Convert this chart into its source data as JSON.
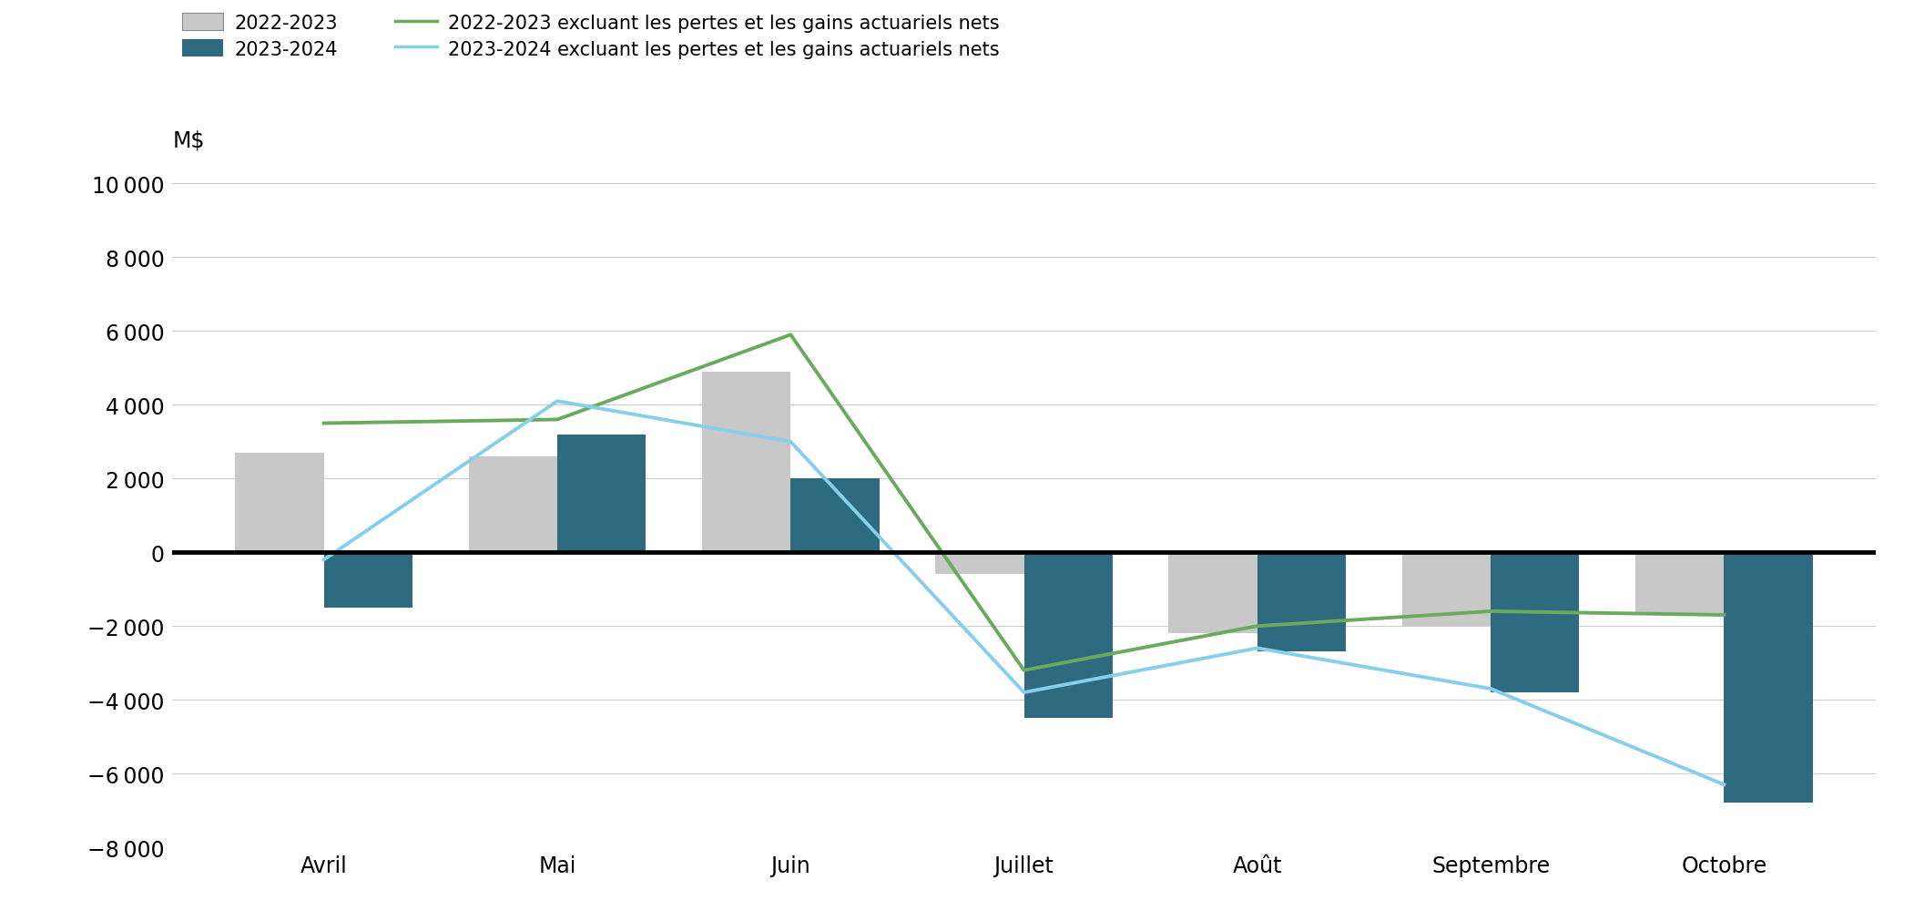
{
  "months": [
    "Avril",
    "Mai",
    "Juin",
    "Juillet",
    "Août",
    "Septembre",
    "Octobre"
  ],
  "bars_2022_2023": [
    2700,
    2600,
    4900,
    -600,
    -2200,
    -2000,
    -1700
  ],
  "bars_2023_2024": [
    -1500,
    3200,
    2000,
    -4500,
    -2700,
    -3800,
    -6800
  ],
  "line_2022_2023_excl": [
    3500,
    3600,
    5900,
    -3200,
    -2000,
    -1600,
    -1700
  ],
  "line_2023_2024_excl": [
    -200,
    4100,
    3000,
    -3800,
    -2600,
    -3700,
    -6300
  ],
  "bar_color_2022": "#c8c8c8",
  "bar_color_2023": "#2e6b80",
  "line_color_2022": "#6aaa5e",
  "line_color_2023": "#87ceeb",
  "ylim": [
    -8000,
    10000
  ],
  "yticks": [
    -8000,
    -6000,
    -4000,
    -2000,
    0,
    2000,
    4000,
    6000,
    8000,
    10000
  ],
  "legend_2022_bar": "2022-2023",
  "legend_2023_bar": "2023-2024",
  "legend_2022_line": "2022-2023 excluant les pertes et les gains actuariels nets",
  "legend_2023_line": "2023-2024 excluant les pertes et les gains actuariels nets",
  "background_color": "#ffffff",
  "grid_color": "#cccccc",
  "zero_line_color": "#000000",
  "bar_width": 0.38
}
